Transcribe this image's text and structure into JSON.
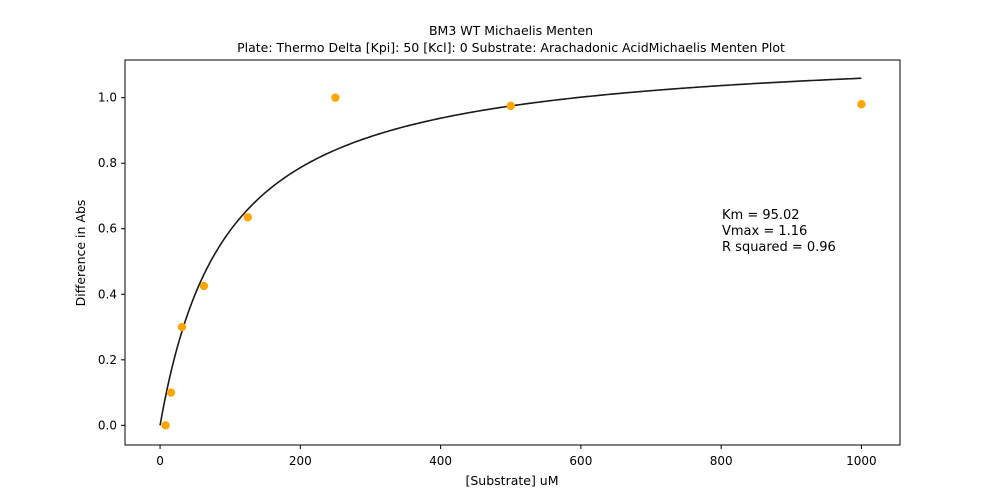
{
  "chart_data": {
    "type": "scatter",
    "title": "BM3 WT Michaelis Menten",
    "subtitle": "Plate: Thermo Delta  [Kpi]: 50  [Kcl]: 0  Substrate: Arachadonic AcidMichaelis Menten Plot",
    "xlabel": "[Substrate] uM",
    "ylabel": "Difference in Abs",
    "xlim": [
      -50,
      1055
    ],
    "ylim": [
      -0.06,
      1.115
    ],
    "xticks": [
      0,
      200,
      400,
      600,
      800,
      1000
    ],
    "yticks": [
      0.0,
      0.2,
      0.4,
      0.6,
      0.8,
      1.0
    ],
    "xtick_labels": [
      "0",
      "200",
      "400",
      "600",
      "800",
      "1000"
    ],
    "ytick_labels": [
      "0.0",
      "0.2",
      "0.4",
      "0.6",
      "0.8",
      "1.0"
    ],
    "grid": false,
    "series": [
      {
        "type": "scatter",
        "color": "#ffa500",
        "x": [
          7.8,
          15.6,
          31.25,
          62.5,
          125,
          250,
          500,
          1000
        ],
        "y": [
          0.0,
          0.1,
          0.3,
          0.425,
          0.635,
          1.0,
          0.975,
          0.98
        ]
      },
      {
        "type": "line",
        "color": "#1a1a1a",
        "model": "michaelis-menten",
        "Km": 95.02,
        "Vmax": 1.16,
        "x_range": [
          0,
          1000
        ]
      }
    ],
    "annotations": [
      "Km = 95.02",
      "Vmax = 1.16",
      "R squared = 0.96"
    ]
  }
}
